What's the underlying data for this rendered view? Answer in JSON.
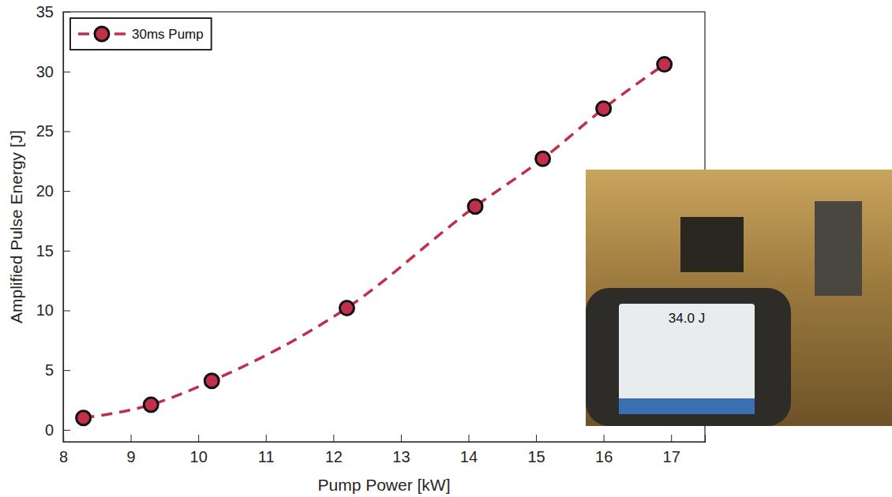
{
  "chart_data": {
    "type": "line",
    "x_label": "Pump Power [kW]",
    "y_label": "Amplified Pulse Energy [J]",
    "x": [
      8.3,
      9.3,
      10.2,
      12.2,
      14.1,
      15.1,
      16.0,
      16.9
    ],
    "series": [
      {
        "name": "30ms Pump",
        "color": "#c0304a",
        "marker": "circle",
        "line_style": "dashed",
        "values": [
          1.0,
          2.1,
          4.1,
          10.2,
          18.7,
          22.7,
          26.9,
          30.6
        ]
      }
    ],
    "xlim": [
      8,
      17.5
    ],
    "xticks": [
      8,
      9,
      10,
      11,
      12,
      13,
      14,
      15,
      16,
      17
    ],
    "ylim": [
      -1,
      35
    ],
    "yticks": [
      0,
      5,
      10,
      15,
      20,
      25,
      30,
      35
    ],
    "grid": false,
    "legend": "upper left",
    "annotations": [
      "34.0 J"
    ]
  }
}
